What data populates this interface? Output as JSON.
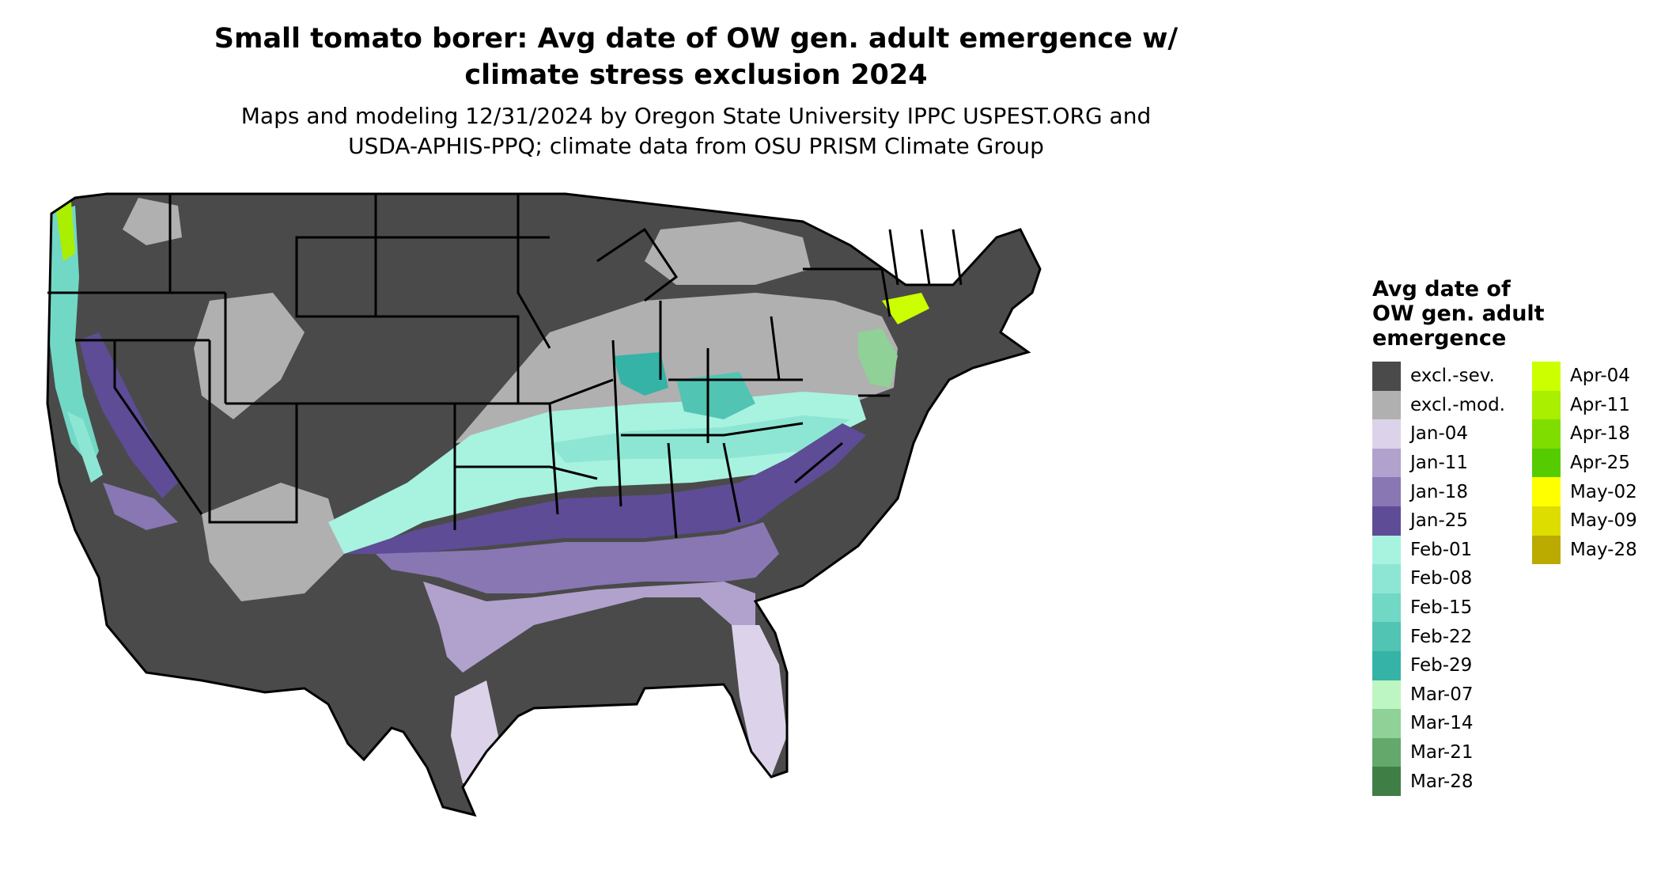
{
  "header": {
    "title_line1": "Small tomato borer: Avg date of OW gen. adult emergence w/",
    "title_line2": "climate stress exclusion 2024",
    "subtitle_line1": "Maps and modeling 12/31/2024 by Oregon State University IPPC USPEST.ORG and",
    "subtitle_line2": "USDA-APHIS-PPQ; climate data from OSU PRISM Climate Group"
  },
  "legend": {
    "title_line1": "Avg date of",
    "title_line2": "OW gen. adult",
    "title_line3": "emergence",
    "items": [
      {
        "label": "excl.-sev.",
        "color": "#4a4a4a"
      },
      {
        "label": "excl.-mod.",
        "color": "#b0b0b0"
      },
      {
        "label": "Jan-04",
        "color": "#dcd3ea"
      },
      {
        "label": "Jan-11",
        "color": "#b0a2cc"
      },
      {
        "label": "Jan-18",
        "color": "#8877b3"
      },
      {
        "label": "Jan-25",
        "color": "#5e4c96"
      },
      {
        "label": "Feb-01",
        "color": "#a8f2e0"
      },
      {
        "label": "Feb-08",
        "color": "#8de6d3"
      },
      {
        "label": "Feb-15",
        "color": "#72d8c6"
      },
      {
        "label": "Feb-22",
        "color": "#52c4b4"
      },
      {
        "label": "Feb-29",
        "color": "#35b3a6"
      },
      {
        "label": "Mar-07",
        "color": "#bdf5c3"
      },
      {
        "label": "Mar-14",
        "color": "#8fd196"
      },
      {
        "label": "Mar-21",
        "color": "#64a86c"
      },
      {
        "label": "Mar-28",
        "color": "#3f7f45"
      },
      {
        "label": "Apr-04",
        "color": "#ccff00"
      },
      {
        "label": "Apr-11",
        "color": "#aaee00"
      },
      {
        "label": "Apr-18",
        "color": "#80dd00"
      },
      {
        "label": "Apr-25",
        "color": "#55cc00"
      },
      {
        "label": "May-02",
        "color": "#ffff00"
      },
      {
        "label": "May-09",
        "color": "#dddd00"
      },
      {
        "label": "May-28",
        "color": "#bbaa00"
      }
    ]
  }
}
